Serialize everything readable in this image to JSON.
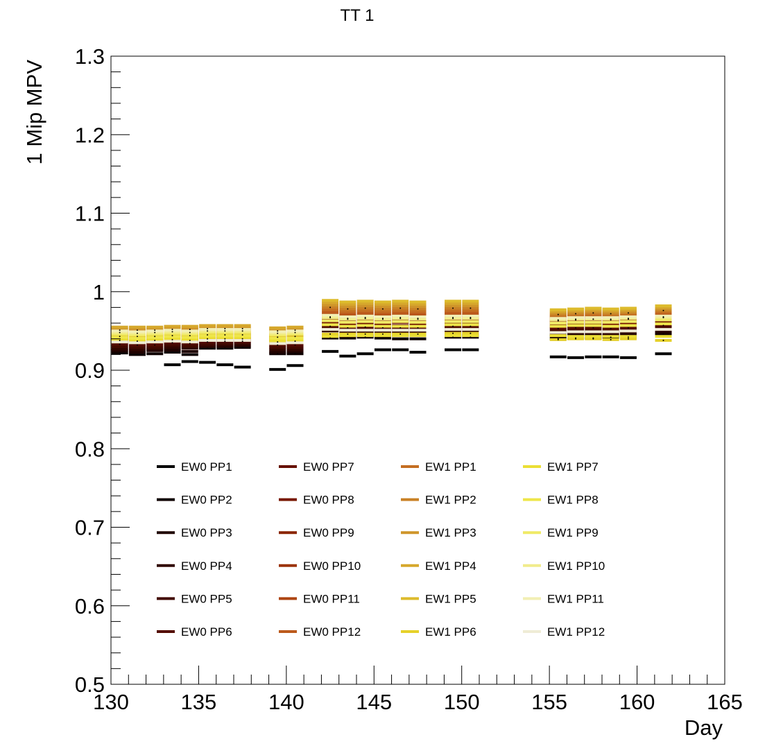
{
  "chart_data": {
    "type": "scatter",
    "title": "TT 1",
    "xlabel": "Day",
    "ylabel": "1 Mip MPV",
    "xlim": [
      130,
      165
    ],
    "ylim": [
      0.5,
      1.3
    ],
    "x_ticks": [
      "130",
      "135",
      "140",
      "145",
      "150",
      "155",
      "160",
      "165"
    ],
    "y_ticks": [
      "0.5",
      "0.6",
      "0.7",
      "0.8",
      "0.9",
      "1",
      "1.1",
      "1.2",
      "1.3"
    ],
    "grid": false,
    "legend_position": "lower-center",
    "x": [
      130.5,
      131.5,
      132.5,
      133.5,
      134.5,
      135.5,
      136.5,
      137.5,
      139.5,
      140.5,
      142.5,
      143.5,
      144.5,
      145.5,
      146.5,
      147.5,
      149.5,
      150.5,
      155.5,
      156.5,
      157.5,
      158.5,
      159.5,
      161.5
    ],
    "series": [
      {
        "name": "EW0 PP1",
        "color": "#000000",
        "values": [
          null,
          null,
          null,
          0.907,
          0.911,
          0.91,
          0.907,
          0.904,
          0.901,
          0.906,
          0.924,
          0.918,
          0.921,
          0.926,
          0.926,
          0.923,
          0.926,
          0.926,
          0.917,
          0.916,
          0.917,
          0.917,
          0.916,
          0.921
        ]
      },
      {
        "name": "EW0 PP2",
        "color": "#0f0000",
        "values": [
          0.922,
          0.92,
          0.921,
          0.923,
          0.92,
          0.928,
          0.928,
          0.929,
          0.921,
          0.921,
          0.941,
          0.941,
          0.942,
          0.941,
          0.94,
          0.94,
          0.942,
          0.942,
          0.94,
          0.941,
          0.941,
          0.942,
          0.942,
          0.946
        ]
      },
      {
        "name": "EW0 PP3",
        "color": "#1f0200",
        "values": [
          0.925,
          0.923,
          0.925,
          0.926,
          0.924,
          0.93,
          0.93,
          0.931,
          0.923,
          0.924,
          0.944,
          0.943,
          0.944,
          0.944,
          0.944,
          0.944,
          0.945,
          0.945,
          0.943,
          0.945,
          0.945,
          0.944,
          0.945,
          0.948
        ]
      },
      {
        "name": "EW0 PP4",
        "color": "#300500",
        "values": [
          0.927,
          0.926,
          0.927,
          0.929,
          0.928,
          0.931,
          0.932,
          0.933,
          0.926,
          0.926,
          0.95,
          0.948,
          0.949,
          0.948,
          0.948,
          0.948,
          0.95,
          0.95,
          0.946,
          0.948,
          0.948,
          0.947,
          0.948,
          0.951
        ]
      },
      {
        "name": "EW0 PP5",
        "color": "#420800",
        "values": [
          0.93,
          0.929,
          0.929,
          0.932,
          0.931,
          0.933,
          0.934,
          0.935,
          0.929,
          0.929,
          0.953,
          0.951,
          0.952,
          0.951,
          0.951,
          0.951,
          0.953,
          0.953,
          0.95,
          0.951,
          0.951,
          0.95,
          0.951,
          0.954
        ]
      },
      {
        "name": "EW0 PP6",
        "color": "#540b00",
        "values": [
          0.933,
          0.932,
          0.932,
          0.935,
          0.934,
          0.936,
          0.937,
          0.937,
          0.932,
          0.932,
          0.956,
          0.954,
          0.955,
          0.954,
          0.954,
          0.954,
          0.956,
          0.956,
          0.953,
          0.954,
          0.954,
          0.953,
          0.954,
          0.957
        ]
      },
      {
        "name": "EW0 PP7",
        "color": "#661000",
        "values": [
          0.936,
          0.935,
          0.935,
          0.937,
          0.937,
          0.938,
          0.939,
          0.939,
          0.934,
          0.935,
          0.959,
          0.957,
          0.958,
          0.957,
          0.957,
          0.957,
          0.959,
          0.959,
          0.955,
          0.957,
          0.957,
          0.956,
          0.957,
          0.96
        ]
      },
      {
        "name": "EW0 PP8",
        "color": "#781800",
        "values": [
          0.939,
          0.938,
          0.938,
          0.94,
          0.939,
          0.941,
          0.941,
          0.941,
          0.937,
          0.937,
          0.962,
          0.96,
          0.961,
          0.96,
          0.961,
          0.96,
          0.961,
          0.962,
          0.958,
          0.96,
          0.96,
          0.959,
          0.96,
          0.963
        ]
      },
      {
        "name": "EW0 PP9",
        "color": "#8a2500",
        "values": [
          0.941,
          0.94,
          0.941,
          0.942,
          0.942,
          0.943,
          0.943,
          0.943,
          0.94,
          0.94,
          0.965,
          0.963,
          0.964,
          0.963,
          0.964,
          0.963,
          0.964,
          0.964,
          0.961,
          0.962,
          0.963,
          0.962,
          0.963,
          0.966
        ]
      },
      {
        "name": "EW0 PP10",
        "color": "#9c3308",
        "values": [
          0.943,
          0.943,
          0.943,
          0.944,
          0.944,
          0.945,
          0.945,
          0.945,
          0.942,
          0.943,
          0.968,
          0.966,
          0.967,
          0.966,
          0.967,
          0.966,
          0.967,
          0.967,
          0.963,
          0.964,
          0.965,
          0.964,
          0.965,
          0.968
        ]
      },
      {
        "name": "EW0 PP11",
        "color": "#ad4512",
        "values": [
          0.945,
          0.945,
          0.945,
          0.946,
          0.946,
          0.947,
          0.947,
          0.947,
          0.944,
          0.945,
          0.971,
          0.969,
          0.97,
          0.969,
          0.97,
          0.969,
          0.97,
          0.97,
          0.965,
          0.966,
          0.967,
          0.966,
          0.967,
          0.97
        ]
      },
      {
        "name": "EW0 PP12",
        "color": "#bc5a1c",
        "values": [
          0.947,
          0.947,
          0.947,
          0.948,
          0.948,
          0.949,
          0.949,
          0.949,
          0.946,
          0.947,
          0.974,
          0.972,
          0.973,
          0.972,
          0.973,
          0.972,
          0.973,
          0.973,
          0.967,
          0.968,
          0.969,
          0.968,
          0.969,
          0.972
        ]
      },
      {
        "name": "EW1 PP1",
        "color": "#c46e22",
        "values": [
          0.949,
          0.949,
          0.949,
          0.95,
          0.95,
          0.951,
          0.951,
          0.951,
          0.948,
          0.949,
          0.977,
          0.975,
          0.976,
          0.975,
          0.976,
          0.975,
          0.976,
          0.976,
          0.969,
          0.97,
          0.971,
          0.97,
          0.971,
          0.974
        ]
      },
      {
        "name": "EW1 PP2",
        "color": "#c98126",
        "values": [
          0.951,
          0.951,
          0.951,
          0.952,
          0.952,
          0.953,
          0.953,
          0.953,
          0.95,
          0.951,
          0.98,
          0.978,
          0.979,
          0.978,
          0.979,
          0.978,
          0.979,
          0.979,
          0.971,
          0.972,
          0.973,
          0.972,
          0.973,
          0.976
        ]
      },
      {
        "name": "EW1 PP3",
        "color": "#cf952a",
        "values": [
          0.953,
          0.953,
          0.953,
          0.954,
          0.954,
          0.955,
          0.955,
          0.955,
          0.952,
          0.953,
          0.983,
          0.981,
          0.982,
          0.981,
          0.982,
          0.981,
          0.982,
          0.982,
          0.973,
          0.974,
          0.975,
          0.974,
          0.975,
          0.978
        ]
      },
      {
        "name": "EW1 PP4",
        "color": "#d6a82c",
        "values": [
          0.955,
          0.955,
          0.955,
          0.956,
          0.956,
          0.957,
          0.957,
          0.957,
          0.954,
          0.955,
          0.986,
          0.984,
          0.985,
          0.984,
          0.985,
          0.984,
          0.985,
          0.985,
          0.975,
          0.976,
          0.977,
          0.976,
          0.977,
          0.98
        ]
      },
      {
        "name": "EW1 PP5",
        "color": "#ddbb2c",
        "values": [
          0.944,
          0.943,
          0.944,
          0.945,
          0.944,
          0.946,
          0.946,
          0.946,
          0.943,
          0.944,
          0.989,
          0.987,
          0.988,
          0.987,
          0.988,
          0.987,
          0.988,
          0.988,
          0.977,
          0.978,
          0.979,
          0.978,
          0.979,
          0.982
        ]
      },
      {
        "name": "EW1 PP6",
        "color": "#e6d12a",
        "values": [
          0.938,
          0.937,
          0.938,
          0.939,
          0.938,
          0.94,
          0.94,
          0.94,
          0.936,
          0.937,
          0.946,
          0.946,
          0.946,
          0.946,
          0.946,
          0.946,
          0.947,
          0.947,
          0.939,
          0.94,
          0.94,
          0.939,
          0.94,
          0.938
        ]
      },
      {
        "name": "EW1 PP7",
        "color": "#ebdf35",
        "values": [
          0.94,
          0.939,
          0.94,
          0.941,
          0.94,
          0.942,
          0.942,
          0.942,
          0.938,
          0.939,
          0.943,
          0.944,
          0.944,
          0.944,
          0.944,
          0.944,
          0.944,
          0.944,
          0.944,
          0.943,
          0.943,
          0.943,
          0.943,
          0.943
        ]
      },
      {
        "name": "EW1 PP8",
        "color": "#eee64a",
        "values": [
          0.942,
          0.941,
          0.942,
          0.943,
          0.942,
          0.944,
          0.944,
          0.944,
          0.941,
          0.941,
          0.958,
          0.956,
          0.957,
          0.956,
          0.956,
          0.956,
          0.958,
          0.958,
          0.956,
          0.957,
          0.957,
          0.956,
          0.957,
          0.959
        ]
      },
      {
        "name": "EW1 PP9",
        "color": "#f0ea66",
        "values": [
          0.946,
          0.945,
          0.946,
          0.947,
          0.946,
          0.948,
          0.948,
          0.948,
          0.945,
          0.946,
          0.963,
          0.961,
          0.962,
          0.961,
          0.962,
          0.961,
          0.962,
          0.962,
          0.96,
          0.961,
          0.961,
          0.961,
          0.962,
          0.964
        ]
      },
      {
        "name": "EW1 PP10",
        "color": "#f1ec8c",
        "values": [
          0.948,
          0.947,
          0.948,
          0.949,
          0.948,
          0.95,
          0.95,
          0.95,
          0.947,
          0.948,
          0.967,
          0.965,
          0.966,
          0.965,
          0.966,
          0.965,
          0.966,
          0.966,
          0.964,
          0.965,
          0.965,
          0.965,
          0.966,
          0.967
        ]
      },
      {
        "name": "EW1 PP11",
        "color": "#f2efb4",
        "values": [
          0.95,
          0.949,
          0.95,
          0.951,
          0.95,
          0.952,
          0.952,
          0.952,
          0.949,
          0.95,
          0.97,
          0.968,
          0.969,
          0.968,
          0.969,
          0.968,
          0.969,
          0.969,
          0.966,
          0.967,
          0.967,
          0.967,
          0.968,
          0.969
        ]
      },
      {
        "name": "EW1 PP12",
        "color": "#efecd6",
        "values": [
          0.936,
          0.935,
          0.936,
          0.937,
          0.936,
          0.938,
          0.938,
          0.938,
          0.934,
          0.935,
          0.952,
          0.951,
          0.951,
          0.951,
          0.951,
          0.951,
          0.952,
          0.952,
          0.948,
          0.949,
          0.949,
          0.949,
          0.95,
          0.952
        ]
      }
    ]
  }
}
